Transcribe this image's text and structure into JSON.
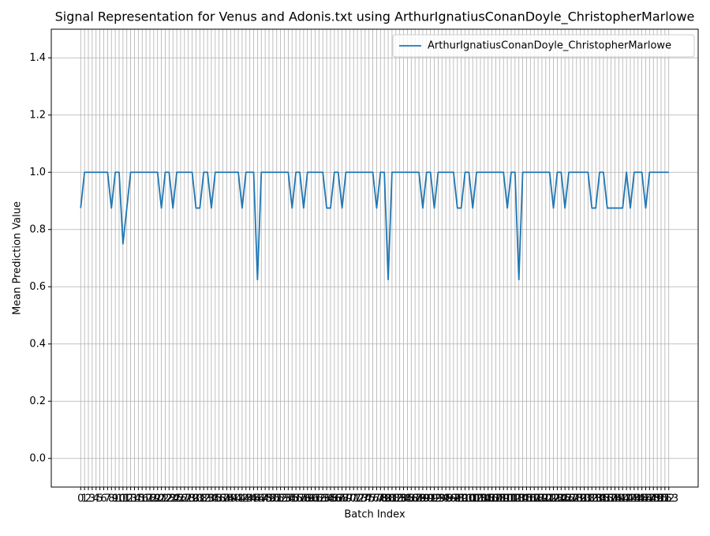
{
  "chart_data": {
    "type": "line",
    "title": "Signal Representation for Venus and Adonis.txt using ArthurIgnatiusConanDoyle_ChristopherMarlowe",
    "x_label": "Batch Index",
    "y_label": "Mean Prediction Value",
    "x": [
      0,
      1,
      2,
      3,
      4,
      5,
      6,
      7,
      8,
      9,
      10,
      11,
      12,
      13,
      14,
      15,
      16,
      17,
      18,
      19,
      20,
      21,
      22,
      23,
      24,
      25,
      26,
      27,
      28,
      29,
      30,
      31,
      32,
      33,
      34,
      35,
      36,
      37,
      38,
      39,
      40,
      41,
      42,
      43,
      44,
      45,
      46,
      47,
      48,
      49,
      50,
      51,
      52,
      53,
      54,
      55,
      56,
      57,
      58,
      59,
      60,
      61,
      62,
      63,
      64,
      65,
      66,
      67,
      68,
      69,
      70,
      71,
      72,
      73,
      74,
      75,
      76,
      77,
      78,
      79,
      80,
      81,
      82,
      83,
      84,
      85,
      86,
      87,
      88,
      89,
      90,
      91,
      92,
      93,
      94,
      95,
      96,
      97,
      98,
      99,
      100,
      101,
      102,
      103,
      104,
      105,
      106,
      107,
      108,
      109,
      110,
      111,
      112,
      113,
      114,
      115,
      116,
      117,
      118,
      119,
      120,
      121,
      122,
      123,
      124,
      125,
      126,
      127,
      128,
      129,
      130,
      131,
      132,
      133,
      134,
      135,
      136,
      137,
      138,
      139,
      140,
      141,
      142,
      143,
      144,
      145,
      146,
      147,
      148,
      149,
      150,
      151,
      152,
      153
    ],
    "series": [
      {
        "name": "ArthurIgnatiusConanDoyle_ChristopherMarlowe",
        "color": "#1f77b4",
        "values": [
          0.875,
          1,
          1,
          1,
          1,
          1,
          1,
          1,
          0.875,
          1,
          1,
          0.75,
          0.875,
          1,
          1,
          1,
          1,
          1,
          1,
          1,
          1,
          0.875,
          1,
          1,
          0.875,
          1,
          1,
          1,
          1,
          1,
          0.875,
          0.875,
          1,
          1,
          0.875,
          1,
          1,
          1,
          1,
          1,
          1,
          1,
          0.875,
          1,
          1,
          1,
          0.625,
          1,
          1,
          1,
          1,
          1,
          1,
          1,
          1,
          0.875,
          1,
          1,
          0.875,
          1,
          1,
          1,
          1,
          1,
          0.875,
          0.875,
          1,
          1,
          0.875,
          1,
          1,
          1,
          1,
          1,
          1,
          1,
          1,
          0.875,
          1,
          1,
          0.625,
          1,
          1,
          1,
          1,
          1,
          1,
          1,
          1,
          0.875,
          1,
          1,
          0.875,
          1,
          1,
          1,
          1,
          1,
          0.875,
          0.875,
          1,
          1,
          0.875,
          1,
          1,
          1,
          1,
          1,
          1,
          1,
          1,
          0.875,
          1,
          1,
          0.625,
          1,
          1,
          1,
          1,
          1,
          1,
          1,
          1,
          0.875,
          1,
          1,
          0.875,
          1,
          1,
          1,
          1,
          1,
          1,
          0.875,
          0.875,
          1,
          1,
          0.875,
          0.875,
          0.875,
          0.875,
          0.875,
          1,
          0.875,
          1,
          1,
          1,
          0.875,
          1,
          1,
          1,
          1,
          1,
          1
        ]
      }
    ],
    "xlim": [
      -7.65,
      160.65
    ],
    "ylim": [
      -0.1,
      1.5
    ],
    "yticks": [
      {
        "value": 0,
        "label": "0.0"
      },
      0.2,
      0.4,
      0.6,
      0.8,
      {
        "value": 1,
        "label": "1.0"
      },
      1.2,
      1.4
    ],
    "grid": true,
    "legend": "upper right"
  }
}
